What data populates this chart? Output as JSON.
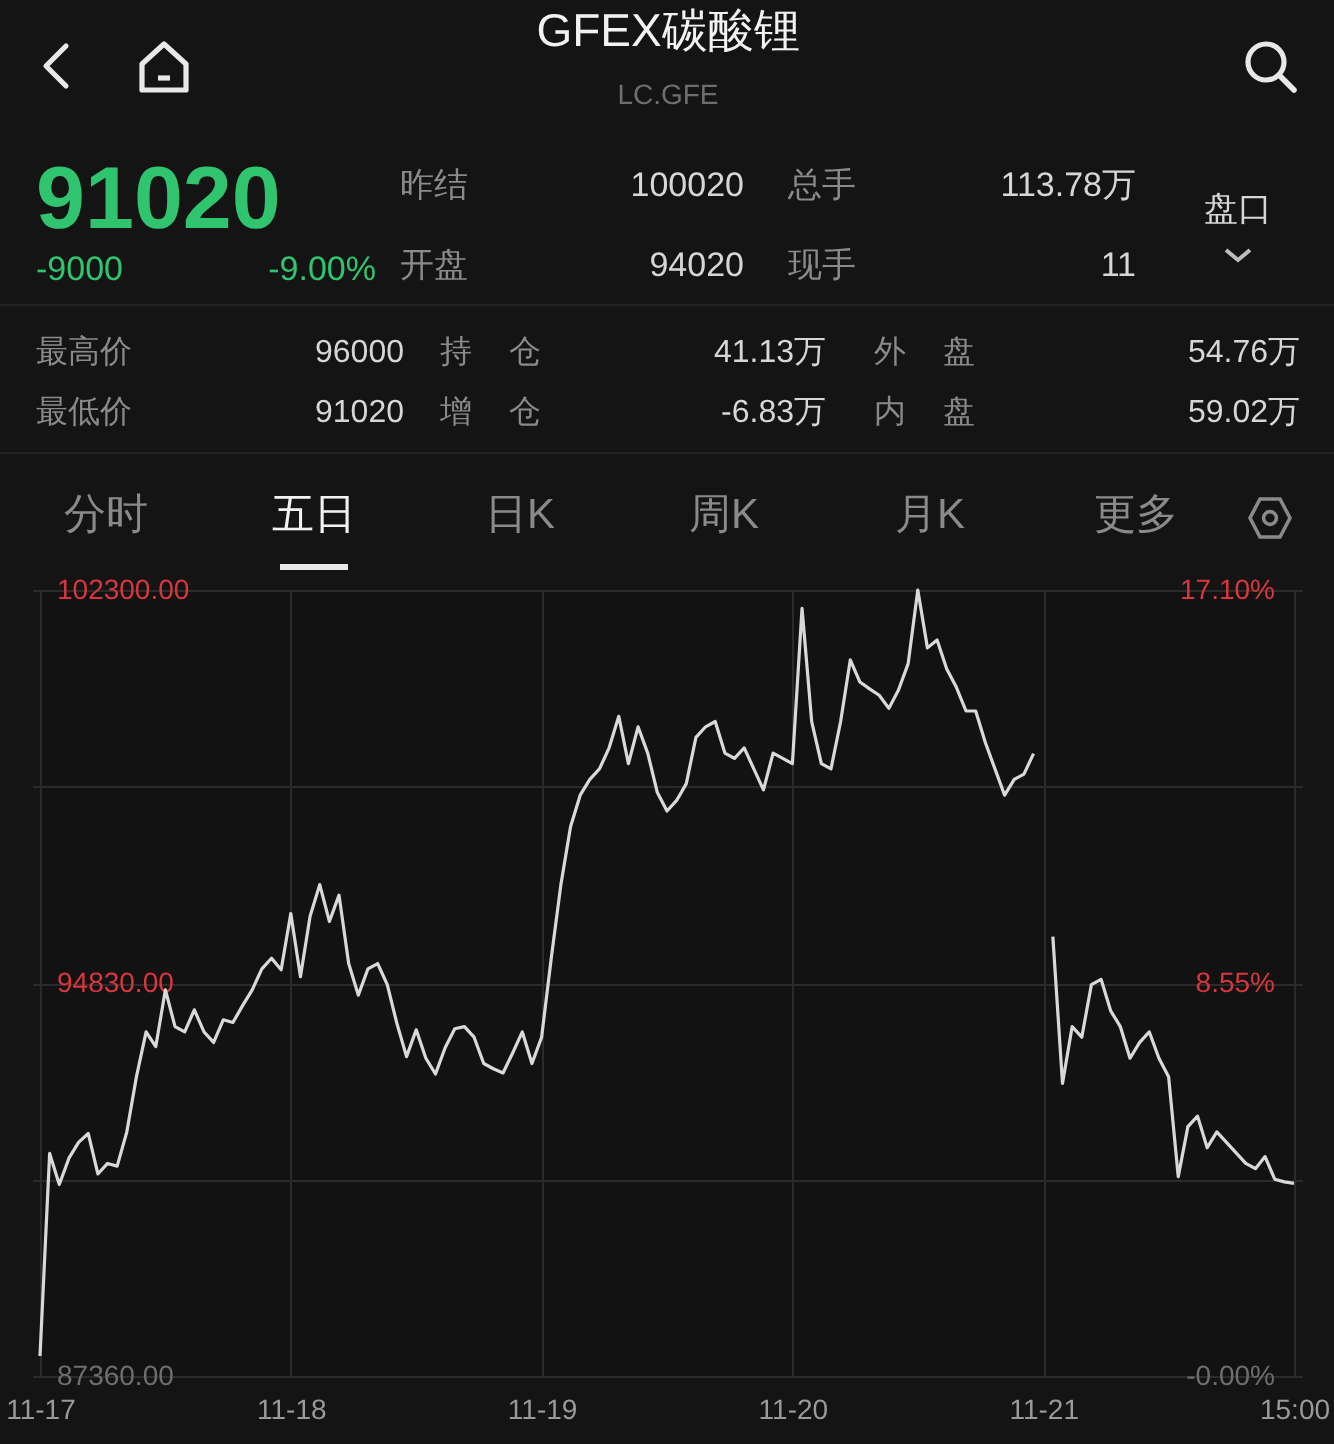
{
  "chart_data": [
    {
      "type": "other",
      "title": "GFEX碳酸锂",
      "subtitle": "LC.GFE",
      "annotations": [
        "91020",
        "-9000",
        "-9.00%",
        "昨结",
        "100020",
        "总手",
        "113.78万",
        "开盘",
        "94020",
        "现手",
        "11",
        "盘口",
        "最高价",
        "96000",
        "持 仓",
        "41.13万",
        "外 盘",
        "54.76万",
        "最低价",
        "91020",
        "增 仓",
        "-6.83万",
        "内 盘",
        "59.02万",
        "分时",
        "五日",
        "日K",
        "周K",
        "月K",
        "更多"
      ]
    },
    {
      "type": "line",
      "categories": [
        "11-17",
        null,
        null,
        null,
        null,
        null,
        null,
        null,
        null,
        null,
        null,
        null,
        null,
        null,
        null,
        null,
        null,
        null,
        null,
        null,
        null,
        null,
        null,
        null,
        null,
        null,
        "11-18",
        null,
        null,
        null,
        null,
        null,
        null,
        null,
        null,
        null,
        null,
        null,
        null,
        null,
        null,
        null,
        null,
        null,
        null,
        null,
        null,
        null,
        null,
        null,
        null,
        null,
        "11-19",
        null,
        null,
        null,
        null,
        null,
        null,
        null,
        null,
        null,
        null,
        null,
        null,
        null,
        null,
        null,
        null,
        null,
        null,
        null,
        null,
        null,
        null,
        null,
        null,
        null,
        "11-20",
        null,
        null,
        null,
        null,
        null,
        null,
        null,
        null,
        null,
        null,
        null,
        null,
        null,
        null,
        null,
        null,
        null,
        null,
        null,
        null,
        null,
        null,
        null,
        null,
        null,
        "11-21",
        null,
        null,
        null,
        null,
        null,
        null,
        null,
        null,
        null,
        null,
        null,
        null,
        null,
        null,
        null,
        null,
        null,
        null,
        null,
        null,
        null,
        null,
        null,
        null,
        null,
        "15:00"
      ],
      "series": [
        {
          "color": "#d9d9d9",
          "values": [
            87740,
            91590,
            91000,
            91500,
            91800,
            91970,
            91200,
            91400,
            91350,
            92000,
            93050,
            93900,
            93620,
            94700,
            94000,
            93900,
            94320,
            93900,
            93700,
            94130,
            94080,
            94400,
            94700,
            95100,
            95300,
            95080,
            96150,
            94950,
            96100,
            96700,
            96000,
            96500,
            95200,
            94600,
            95100,
            95200,
            94800,
            94060,
            93430,
            93940,
            93400,
            93100,
            93600,
            93960,
            94000,
            93800,
            93300,
            93200,
            93120,
            93500,
            93900,
            93300,
            93800,
            95300,
            96700,
            97800,
            98400,
            98700,
            98900,
            99300,
            99900,
            99000,
            99700,
            99200,
            98450,
            98100,
            98300,
            98620,
            99500,
            99700,
            99800,
            99200,
            99100,
            99300,
            98900,
            98500,
            99200,
            99100,
            99000,
            101950,
            99800,
            99000,
            98900,
            99800,
            100970,
            100550,
            100420,
            100300,
            100050,
            100400,
            100900,
            102300,
            101200,
            101350,
            100800,
            100450,
            100000,
            100000,
            99400,
            98900,
            98400,
            98700,
            98800,
            99190,
            null,
            95710,
            92920,
            94000,
            93800,
            94800,
            94900,
            94300,
            94000,
            93400,
            93700,
            93900,
            93400,
            93050,
            91150,
            92100,
            92300,
            91700,
            92000,
            91800,
            91600,
            91400,
            91300,
            91530,
            91100,
            91050,
            91020
          ]
        }
      ],
      "ylim": [
        87360,
        102300
      ],
      "yticks": [
        {
          "value": 87360,
          "label": "87360.00"
        },
        {
          "value": 91095,
          "label": null
        },
        {
          "value": 94830,
          "label": "94830.00"
        },
        {
          "value": 98565,
          "label": null
        },
        {
          "value": 102300,
          "label": "102300.00"
        }
      ],
      "y2lim": [
        0,
        17.1
      ],
      "y2ticks": [
        {
          "value": 0,
          "label": "-0.00%"
        },
        {
          "value": 4.275,
          "label": null
        },
        {
          "value": 8.55,
          "label": "8.55%"
        },
        {
          "value": 12.825,
          "label": null
        },
        {
          "value": 17.1,
          "label": "17.10%"
        }
      ],
      "grid": true
    }
  ]
}
